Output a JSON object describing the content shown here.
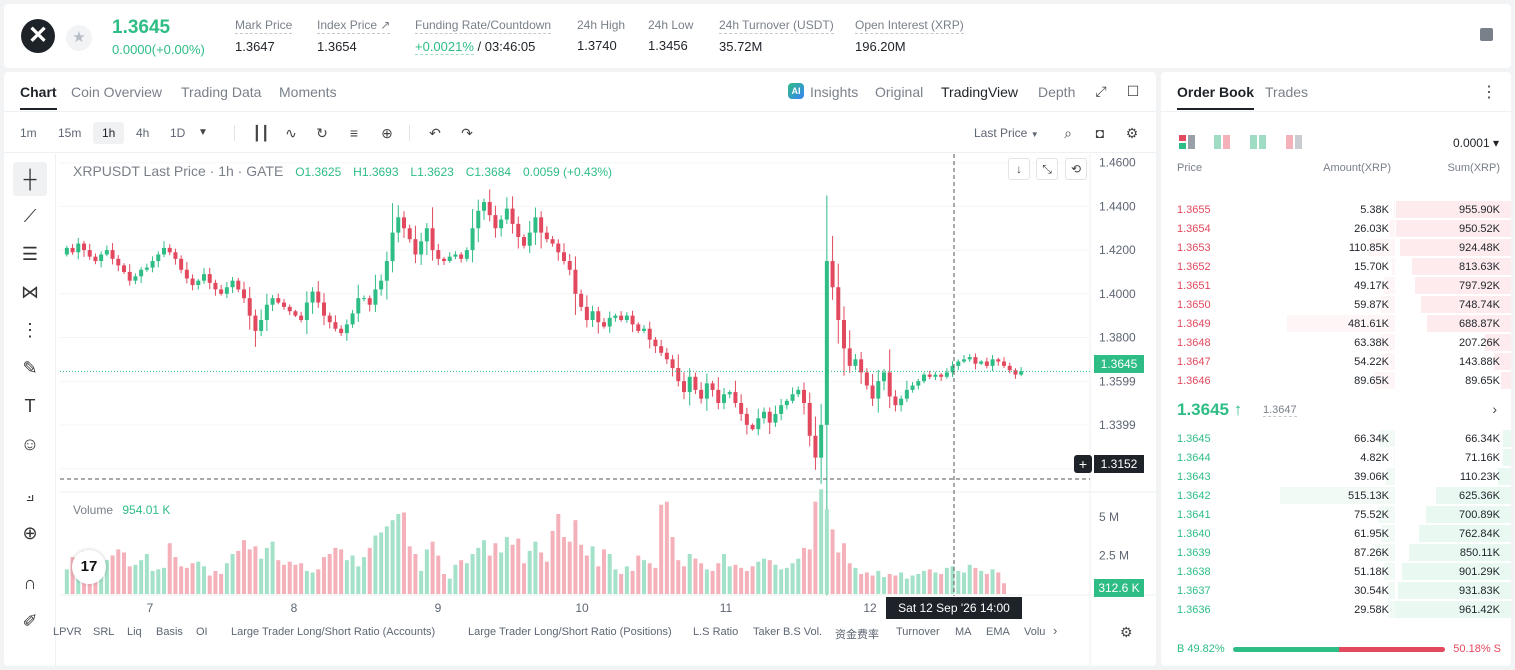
{
  "ticker": {
    "symbol_logo": "✕",
    "last_price": "1.3645",
    "change": "0.0000(+0.00%)",
    "stats": [
      {
        "label": "Mark Price",
        "value": "1.3647"
      },
      {
        "label": "Index Price ↗",
        "value": "1.3654"
      },
      {
        "label": "Funding Rate/Countdown",
        "value": "+0.0021%",
        "value2": "/ 03:46:05"
      },
      {
        "label": "24h High",
        "value": "1.3740"
      },
      {
        "label": "24h Low",
        "value": "1.3456"
      },
      {
        "label": "24h Turnover (USDT)",
        "value": "35.72M"
      },
      {
        "label": "Open Interest (XRP)",
        "value": "196.20M"
      }
    ]
  },
  "chart_tabs": [
    "Chart",
    "Coin Overview",
    "Trading Data",
    "Moments"
  ],
  "view_tabs": [
    "Insights",
    "Original",
    "TradingView",
    "Depth"
  ],
  "ai_badge": "AI",
  "timeframes": [
    "1m",
    "15m",
    "1h",
    "4h",
    "1D"
  ],
  "price_type": "Last Price",
  "legend": {
    "title": "XRPUSDT Last Price · 1h · GATE",
    "o": "O1.3625",
    "h": "H1.3693",
    "l": "L1.3623",
    "c": "C1.3684",
    "chg": "0.0059 (+0.43%)"
  },
  "volume_legend": {
    "label": "Volume",
    "value": "954.01 K"
  },
  "price_tags": {
    "last": "1.3645",
    "crosshair": "1.3152",
    "volume": "312.6 K"
  },
  "time_tag": "Sat 12 Sep '26   14:00",
  "indicators": [
    "LPVR",
    "SRL",
    "Liq",
    "Basis",
    "OI",
    "Large Trader Long/Short Ratio (Accounts)",
    "Large Trader Long/Short Ratio (Positions)",
    "L.S Ratio",
    "Taker B.S Vol.",
    "资金费率",
    "Turnover",
    "MA",
    "EMA",
    "Volu"
  ],
  "tv_logo": "17",
  "chart_data": {
    "type": "candlestick",
    "title": "XRPUSDT Last Price · 1h · GATE",
    "y_ticks": [
      "1.4600",
      "1.4400",
      "1.4200",
      "1.4000",
      "1.3800",
      "1.3599",
      "1.3399",
      "1.3199"
    ],
    "ylim": [
      1.312,
      1.464
    ],
    "x_ticks": [
      "7",
      "8",
      "9",
      "10",
      "11",
      "12"
    ],
    "volume_ticks": [
      "5 M",
      "2.5 M"
    ],
    "volume_max": 6500000,
    "last_price": 1.3645,
    "crosshair_price": 1.3152,
    "closes": [
      1.421,
      1.419,
      1.423,
      1.42,
      1.417,
      1.415,
      1.418,
      1.42,
      1.416,
      1.413,
      1.41,
      1.406,
      1.408,
      1.411,
      1.412,
      1.415,
      1.418,
      1.421,
      1.419,
      1.416,
      1.411,
      1.407,
      1.404,
      1.406,
      1.409,
      1.405,
      1.402,
      1.4,
      1.403,
      1.406,
      1.402,
      1.398,
      1.39,
      1.383,
      1.388,
      1.395,
      1.398,
      1.396,
      1.394,
      1.392,
      1.39,
      1.388,
      1.396,
      1.401,
      1.396,
      1.39,
      1.387,
      1.384,
      1.382,
      1.386,
      1.391,
      1.398,
      1.398,
      1.395,
      1.402,
      1.406,
      1.415,
      1.428,
      1.435,
      1.43,
      1.425,
      1.418,
      1.424,
      1.43,
      1.42,
      1.416,
      1.415,
      1.417,
      1.418,
      1.416,
      1.42,
      1.43,
      1.438,
      1.442,
      1.436,
      1.43,
      1.434,
      1.439,
      1.432,
      1.426,
      1.422,
      1.428,
      1.435,
      1.428,
      1.425,
      1.423,
      1.419,
      1.415,
      1.411,
      1.4,
      1.394,
      1.388,
      1.392,
      1.387,
      1.385,
      1.389,
      1.39,
      1.388,
      1.39,
      1.386,
      1.383,
      1.384,
      1.379,
      1.376,
      1.373,
      1.37,
      1.366,
      1.36,
      1.355,
      1.362,
      1.356,
      1.352,
      1.359,
      1.356,
      1.35,
      1.354,
      1.355,
      1.35,
      1.345,
      1.34,
      1.338,
      1.343,
      1.346,
      1.341,
      1.345,
      1.349,
      1.351,
      1.354,
      1.356,
      1.35,
      1.335,
      1.325,
      1.34,
      1.415,
      1.403,
      1.388,
      1.375,
      1.367,
      1.37,
      1.364,
      1.358,
      1.352,
      1.36,
      1.364,
      1.353,
      1.349,
      1.352,
      1.356,
      1.358,
      1.36,
      1.363,
      1.362,
      1.363,
      1.362,
      1.364,
      1.367,
      1.369,
      1.37,
      1.371,
      1.368,
      1.369,
      1.367,
      1.37,
      1.369,
      1.367,
      1.365,
      1.363,
      1.3645
    ],
    "volumes": [
      1.6,
      2.4,
      1.5,
      2.8,
      1.9,
      2.1,
      1.6,
      2.2,
      2.5,
      2.9,
      2.7,
      1.8,
      1.9,
      2.2,
      2.6,
      1.5,
      1.6,
      1.7,
      3.3,
      2.4,
      1.8,
      1.7,
      2.0,
      2.1,
      1.8,
      1.2,
      1.5,
      1.3,
      2.0,
      2.6,
      2.8,
      3.5,
      2.9,
      3.1,
      2.3,
      3.0,
      3.4,
      2.2,
      1.9,
      2.1,
      1.9,
      2.0,
      1.5,
      1.4,
      1.6,
      2.4,
      2.6,
      3.0,
      2.9,
      2.2,
      2.5,
      1.8,
      2.4,
      3.0,
      3.8,
      4.0,
      4.4,
      4.8,
      5.2,
      5.3,
      3.1,
      2.6,
      1.5,
      2.9,
      3.4,
      2.5,
      1.3,
      1.0,
      1.9,
      2.2,
      2.0,
      2.6,
      3.0,
      3.5,
      2.5,
      3.3,
      2.7,
      3.7,
      3.2,
      3.6,
      2.0,
      2.8,
      3.4,
      2.7,
      2.1,
      4.1,
      5.2,
      3.7,
      3.4,
      4.8,
      3.2,
      2.5,
      3.1,
      1.8,
      2.9,
      2.6,
      1.6,
      1.3,
      1.8,
      1.5,
      2.5,
      2.2,
      2.0,
      1.7,
      5.8,
      6.0,
      3.7,
      2.2,
      1.8,
      2.6,
      2.3,
      2.0,
      1.6,
      1.5,
      2.0,
      2.6,
      1.8,
      1.9,
      1.7,
      1.5,
      1.8,
      2.1,
      2.3,
      2.2,
      1.9,
      1.6,
      1.7,
      2.0,
      2.3,
      3.0,
      2.9,
      6.0,
      6.8,
      5.5,
      4.2,
      2.7,
      3.3,
      2.0,
      1.7,
      1.3,
      1.4,
      1.2,
      1.5,
      1.1,
      1.3,
      1.2,
      1.4,
      1.0,
      1.2,
      1.3,
      1.5,
      1.6,
      1.4,
      1.3,
      1.7,
      1.8,
      1.5,
      1.4,
      1.9,
      1.7,
      1.5,
      1.3,
      1.6,
      1.4,
      0.7
    ]
  },
  "order_book": {
    "tabs": [
      "Order Book",
      "Trades"
    ],
    "precision": "0.0001 ▾",
    "headers": {
      "price": "Price",
      "amount": "Amount(XRP)",
      "sum": "Sum(XRP)"
    },
    "asks": [
      {
        "price": "1.3655",
        "amount": "5.38K",
        "sum": "955.90K",
        "depth": 0.99,
        "amt_pct": 0.01
      },
      {
        "price": "1.3654",
        "amount": "26.03K",
        "sum": "950.52K",
        "depth": 0.99,
        "amt_pct": 0.05
      },
      {
        "price": "1.3653",
        "amount": "110.85K",
        "sum": "924.48K",
        "depth": 0.96,
        "amt_pct": 0.23
      },
      {
        "price": "1.3652",
        "amount": "15.70K",
        "sum": "813.63K",
        "depth": 0.85,
        "amt_pct": 0.03
      },
      {
        "price": "1.3651",
        "amount": "49.17K",
        "sum": "797.92K",
        "depth": 0.83,
        "amt_pct": 0.1
      },
      {
        "price": "1.3650",
        "amount": "59.87K",
        "sum": "748.74K",
        "depth": 0.78,
        "amt_pct": 0.12
      },
      {
        "price": "1.3649",
        "amount": "481.61K",
        "sum": "688.87K",
        "depth": 0.72,
        "amt_pct": 0.94
      },
      {
        "price": "1.3648",
        "amount": "63.38K",
        "sum": "207.26K",
        "depth": 0.22,
        "amt_pct": 0.13
      },
      {
        "price": "1.3647",
        "amount": "54.22K",
        "sum": "143.88K",
        "depth": 0.15,
        "amt_pct": 0.11
      },
      {
        "price": "1.3646",
        "amount": "89.65K",
        "sum": "89.65K",
        "depth": 0.09,
        "amt_pct": 0.18
      }
    ],
    "mid_price": "1.3645 ↑",
    "mark_price": "1.3647",
    "bids": [
      {
        "price": "1.3645",
        "amount": "66.34K",
        "sum": "66.34K",
        "depth": 0.07,
        "amt_pct": 0.13
      },
      {
        "price": "1.3644",
        "amount": "4.82K",
        "sum": "71.16K",
        "depth": 0.07,
        "amt_pct": 0.01
      },
      {
        "price": "1.3643",
        "amount": "39.06K",
        "sum": "110.23K",
        "depth": 0.11,
        "amt_pct": 0.08
      },
      {
        "price": "1.3642",
        "amount": "515.13K",
        "sum": "625.36K",
        "depth": 0.65,
        "amt_pct": 1.0
      },
      {
        "price": "1.3641",
        "amount": "75.52K",
        "sum": "700.89K",
        "depth": 0.73,
        "amt_pct": 0.15
      },
      {
        "price": "1.3640",
        "amount": "61.95K",
        "sum": "762.84K",
        "depth": 0.79,
        "amt_pct": 0.12
      },
      {
        "price": "1.3639",
        "amount": "87.26K",
        "sum": "850.11K",
        "depth": 0.88,
        "amt_pct": 0.17
      },
      {
        "price": "1.3638",
        "amount": "51.18K",
        "sum": "901.29K",
        "depth": 0.94,
        "amt_pct": 0.1
      },
      {
        "price": "1.3637",
        "amount": "30.54K",
        "sum": "931.83K",
        "depth": 0.97,
        "amt_pct": 0.06
      },
      {
        "price": "1.3636",
        "amount": "29.58K",
        "sum": "961.42K",
        "depth": 1.0,
        "amt_pct": 0.06
      }
    ],
    "buy_ratio": "B 49.82%",
    "sell_ratio": "50.18% S",
    "buy_pct": 49.82
  },
  "colors": {
    "up": "#2ebd85",
    "down": "#e2485e",
    "up_vol": "#a3e2c9",
    "down_vol": "#f4b1ba"
  }
}
